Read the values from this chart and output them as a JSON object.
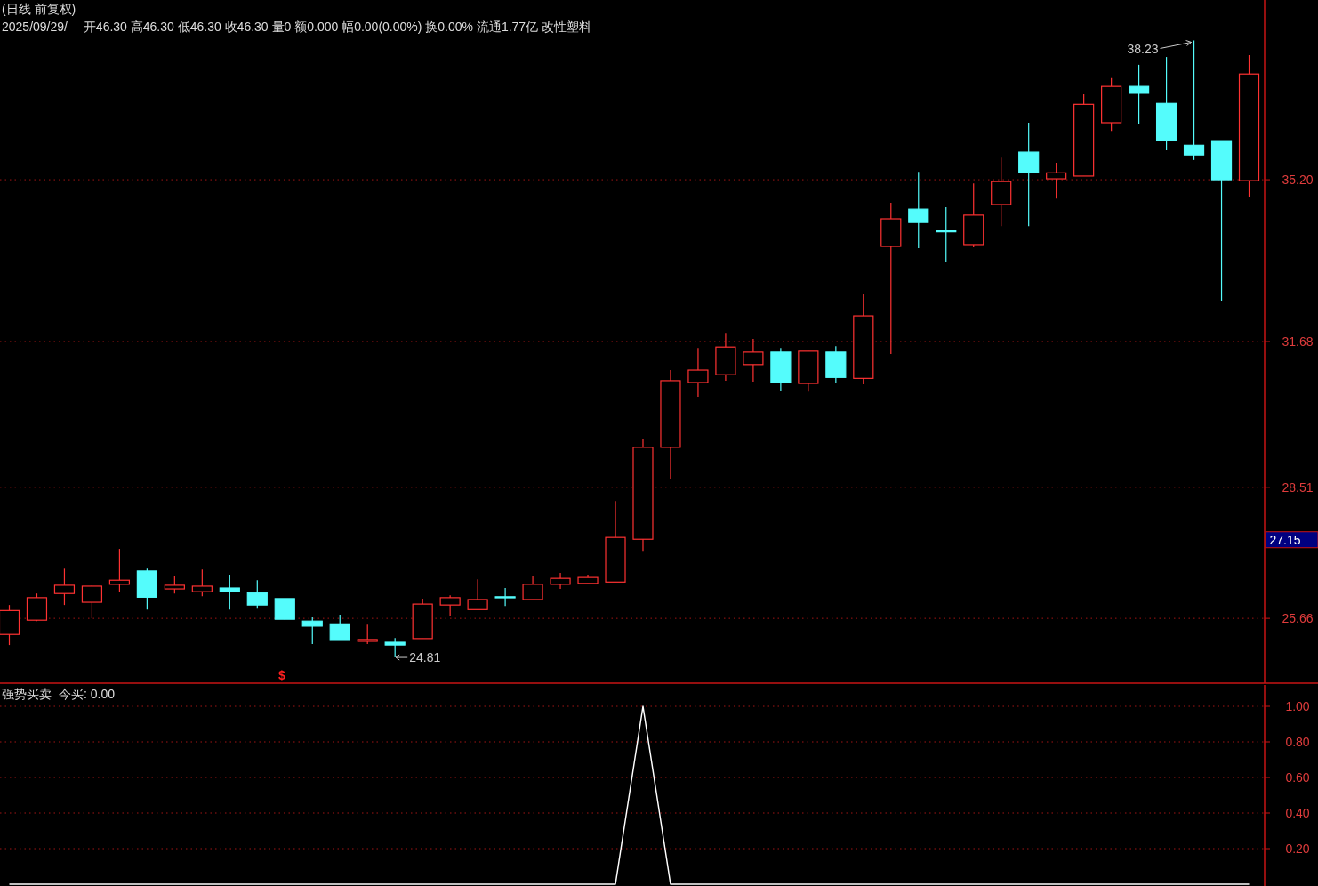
{
  "chart_data": [
    {
      "type": "candlestick",
      "title": "(日线 前复权)",
      "subtitle": "2025/09/29/— 开46.30 高46.30 低46.30 收46.30 量0 额0.000 幅0.00(0.00%) 换0.00% 流通1.77亿 改性塑料",
      "categories": [
        null,
        null,
        null,
        null,
        null,
        null,
        null,
        null,
        null,
        null,
        null,
        null,
        null,
        null,
        null,
        null,
        null,
        null,
        null,
        null,
        null,
        null,
        null,
        null,
        null,
        null,
        null,
        null,
        null,
        null,
        null,
        null,
        null,
        null,
        null,
        null,
        null,
        null,
        null,
        null,
        null,
        null,
        null,
        null,
        null,
        null
      ],
      "ohlc": [
        [
          25.31,
          25.95,
          25.08,
          25.83
        ],
        [
          25.62,
          26.2,
          25.6,
          26.11
        ],
        [
          26.2,
          26.74,
          25.95,
          26.38
        ],
        [
          26.01,
          26.38,
          25.66,
          26.36
        ],
        [
          26.4,
          27.17,
          26.24,
          26.49
        ],
        [
          26.69,
          26.74,
          25.85,
          26.12
        ],
        [
          26.3,
          26.59,
          26.2,
          26.38
        ],
        [
          26.24,
          26.72,
          26.14,
          26.36
        ],
        [
          26.32,
          26.61,
          25.85,
          26.24
        ],
        [
          26.22,
          26.49,
          25.87,
          25.95
        ],
        [
          26.09,
          26.09,
          25.64,
          25.64
        ],
        [
          25.6,
          25.68,
          25.1,
          25.49
        ],
        [
          25.54,
          25.74,
          25.18,
          25.18
        ],
        [
          25.16,
          25.52,
          25.1,
          25.2
        ],
        [
          25.14,
          25.23,
          24.81,
          25.08
        ],
        [
          25.22,
          26.09,
          25.22,
          25.97
        ],
        [
          25.95,
          26.16,
          25.72,
          26.11
        ],
        [
          25.85,
          26.51,
          25.85,
          26.07
        ],
        [
          26.13,
          26.32,
          25.93,
          26.12
        ],
        [
          26.07,
          26.57,
          26.07,
          26.4
        ],
        [
          26.4,
          26.65,
          26.3,
          26.53
        ],
        [
          26.42,
          26.61,
          26.42,
          26.55
        ],
        [
          26.45,
          28.21,
          26.45,
          27.42
        ],
        [
          27.38,
          29.55,
          27.13,
          29.38
        ],
        [
          29.38,
          31.06,
          28.7,
          30.83
        ],
        [
          30.79,
          31.54,
          30.48,
          31.06
        ],
        [
          30.96,
          31.87,
          30.83,
          31.56
        ],
        [
          31.18,
          31.74,
          30.81,
          31.45
        ],
        [
          31.45,
          31.54,
          30.61,
          30.79
        ],
        [
          30.77,
          31.47,
          30.59,
          31.47
        ],
        [
          31.45,
          31.58,
          30.77,
          30.9
        ],
        [
          30.88,
          32.72,
          30.75,
          32.24
        ],
        [
          33.75,
          34.7,
          31.41,
          34.35
        ],
        [
          34.56,
          35.37,
          33.71,
          34.27
        ],
        [
          34.09,
          34.6,
          33.4,
          34.08
        ],
        [
          33.79,
          35.12,
          33.73,
          34.43
        ],
        [
          34.66,
          35.68,
          34.19,
          35.16
        ],
        [
          35.8,
          36.44,
          34.19,
          35.35
        ],
        [
          35.22,
          35.57,
          34.79,
          35.35
        ],
        [
          35.28,
          37.06,
          35.28,
          36.84
        ],
        [
          36.44,
          37.41,
          36.26,
          37.23
        ],
        [
          37.23,
          37.7,
          36.42,
          37.08
        ],
        [
          36.86,
          37.87,
          35.84,
          36.05
        ],
        [
          35.95,
          38.23,
          35.63,
          35.74
        ],
        [
          36.05,
          36.05,
          32.57,
          35.2
        ],
        [
          35.18,
          37.91,
          34.83,
          37.5
        ]
      ],
      "colors": [
        "#ff3232",
        "#ff3232",
        "#ff3232",
        "#ff3232",
        "#ff3232",
        "#54fcfc",
        "#ff3232",
        "#ff3232",
        "#54fcfc",
        "#54fcfc",
        "#54fcfc",
        "#54fcfc",
        "#54fcfc",
        "#ff3232",
        "#54fcfc",
        "#ff3232",
        "#ff3232",
        "#ff3232",
        "#54fcfc",
        "#ff3232",
        "#ff3232",
        "#ff3232",
        "#ff3232",
        "#ff3232",
        "#ff3232",
        "#ff3232",
        "#ff3232",
        "#ff3232",
        "#54fcfc",
        "#ff3232",
        "#54fcfc",
        "#ff3232",
        "#ff3232",
        "#54fcfc",
        "#54fcfc",
        "#ff3232",
        "#ff3232",
        "#54fcfc",
        "#ff3232",
        "#ff3232",
        "#ff3232",
        "#54fcfc",
        "#54fcfc",
        "#54fcfc",
        "#54fcfc",
        "#ff3232"
      ],
      "ylim": [
        24.25,
        39.11
      ],
      "yticks": [
        25.66,
        28.51,
        31.68,
        {
          "value": 35.2,
          "label": "35.20"
        }
      ],
      "grid": "y",
      "tick_labels": "y",
      "annotations": [
        "38.23",
        "24.81",
        "$",
        "27.15"
      ]
    },
    {
      "type": "line",
      "title": "强势买卖",
      "subtitle": "今买: 0.00",
      "categories": [
        null,
        null,
        null,
        null,
        null,
        null,
        null,
        null,
        null,
        null,
        null,
        null,
        null,
        null,
        null,
        null,
        null,
        null,
        null,
        null,
        null,
        null,
        null,
        null,
        null,
        null,
        null,
        null,
        null,
        null,
        null,
        null,
        null,
        null,
        null,
        null,
        null,
        null,
        null,
        null,
        null,
        null,
        null,
        null,
        null,
        null
      ],
      "series": [
        {
          "color": "#ffffff",
          "values": [
            0,
            0,
            0,
            0,
            0,
            0,
            0,
            0,
            0,
            0,
            0,
            0,
            0,
            0,
            0,
            0,
            0,
            0,
            0,
            0,
            0,
            0,
            0,
            1,
            0,
            0,
            0,
            0,
            0,
            0,
            0,
            0,
            0,
            0,
            0,
            0,
            0,
            0,
            0,
            0,
            0,
            0,
            0,
            0,
            0,
            0
          ]
        }
      ],
      "ylim": [
        -0.01,
        1.12
      ],
      "yticks": [
        {
          "value": 0.2,
          "label": "0.20"
        },
        {
          "value": 0.4,
          "label": "0.40"
        },
        {
          "value": 0.6,
          "label": "0.60"
        },
        {
          "value": 0.8,
          "label": "0.80"
        },
        {
          "value": 1.0,
          "label": "1.00"
        }
      ],
      "grid": "y",
      "tick_labels": "y"
    }
  ]
}
